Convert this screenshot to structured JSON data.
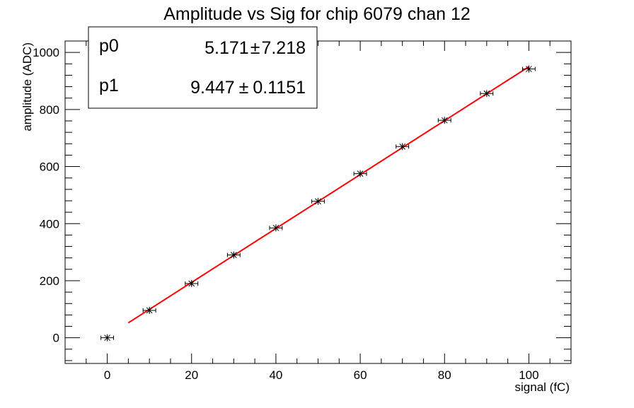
{
  "chart_data": {
    "type": "scatter",
    "title": "Amplitude vs Sig for chip 6079 chan 12",
    "xlabel": "signal (fC)",
    "ylabel": "amplitude (ADC)",
    "xlim": [
      -10,
      110
    ],
    "ylim": [
      -90,
      1040
    ],
    "x_ticks": [
      0,
      20,
      40,
      60,
      80,
      100
    ],
    "y_ticks": [
      0,
      200,
      400,
      600,
      800,
      1000
    ],
    "grid": false,
    "series": [
      {
        "marker": "star",
        "color": "#000000",
        "x": [
          0,
          10,
          20,
          30,
          40,
          50,
          60,
          70,
          80,
          90,
          100
        ],
        "y": [
          0,
          96,
          190,
          290,
          385,
          478,
          575,
          670,
          762,
          856,
          942
        ],
        "x_error": 1.5,
        "y_error": 8
      }
    ],
    "fit": {
      "type": "line",
      "color": "#ff0000",
      "x_range": [
        5,
        100
      ],
      "p0": 5.171,
      "p1": 9.447
    },
    "stats_box": {
      "position": "top-left",
      "rows": [
        {
          "name": "p0",
          "value": "5.171",
          "pm": "±",
          "error": "7.218"
        },
        {
          "name": "p1",
          "value": "9.447",
          "pm": "±",
          "error": "0.1151"
        }
      ]
    }
  }
}
